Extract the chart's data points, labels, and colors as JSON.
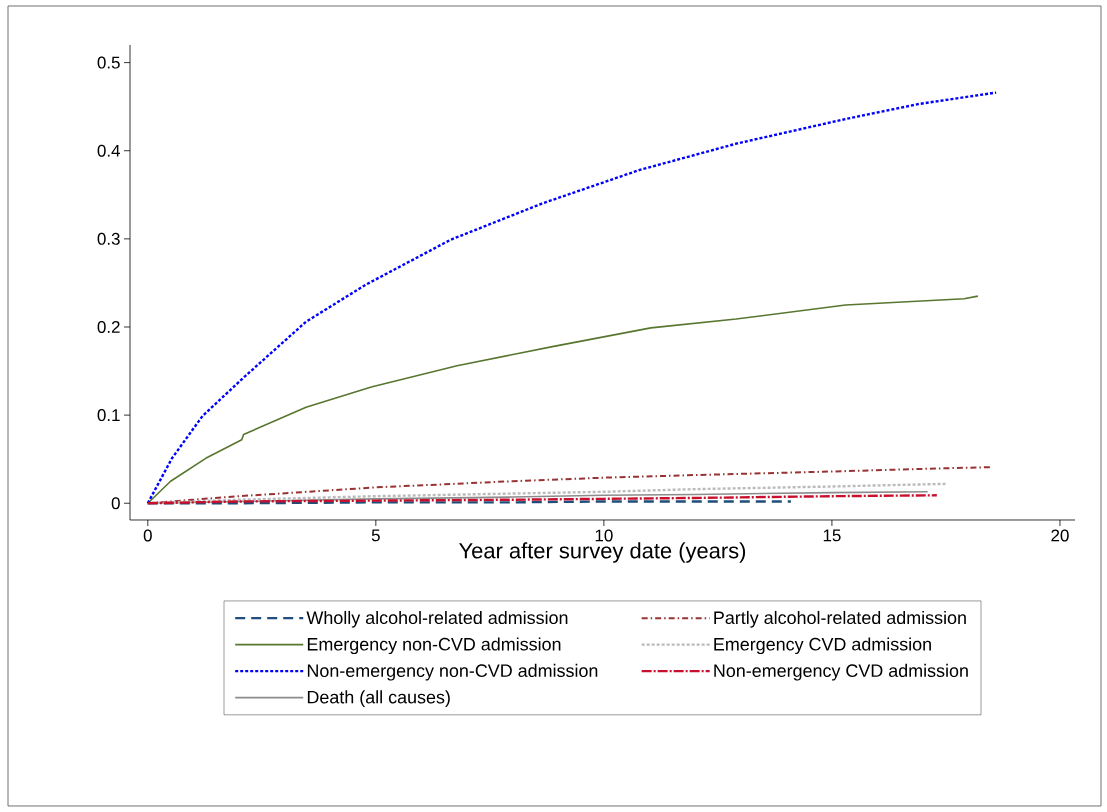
{
  "chart_data": {
    "type": "line",
    "xlabel": "Year after survey date (years)",
    "xlim": [
      -0.39,
      20.33
    ],
    "ylim": [
      -0.019,
      0.52
    ],
    "xticks": [
      0,
      5,
      10,
      15,
      20
    ],
    "yticks": [
      0,
      0.1,
      0.2,
      0.3,
      0.4,
      0.5
    ],
    "grid": false,
    "legend": "bottom",
    "marker": "none",
    "series": [
      {
        "name": "Wholly alcohol-related admission",
        "color": "#1f4e79",
        "line_style": "dashed",
        "x": [
          0,
          2,
          5,
          8,
          10,
          12,
          14.1
        ],
        "values": [
          0,
          0,
          0.001,
          0.001,
          0.002,
          0.002,
          0.002
        ]
      },
      {
        "name": "Partly alcohol-related admission",
        "color": "#993333",
        "line_style": "dashdot",
        "x": [
          0,
          2,
          5,
          8,
          10,
          12,
          15,
          17,
          18.5
        ],
        "values": [
          0,
          0.008,
          0.018,
          0.025,
          0.029,
          0.032,
          0.036,
          0.039,
          0.041
        ]
      },
      {
        "name": "Emergency non-CVD admission",
        "color": "#587630",
        "line_style": "solid",
        "x": [
          0,
          0.5,
          1.27,
          2.06,
          2.1,
          3.47,
          4.9,
          6.78,
          8.9,
          11.03,
          12.9,
          15.3,
          17.9,
          18.2
        ],
        "values": [
          0,
          0.025,
          0.051,
          0.072,
          0.078,
          0.109,
          0.132,
          0.156,
          0.178,
          0.199,
          0.209,
          0.225,
          0.232,
          0.235
        ]
      },
      {
        "name": "Emergency CVD admission",
        "color": "#bbbbbb",
        "line_style": "dotted",
        "x": [
          0,
          2,
          5,
          8,
          10,
          12,
          15,
          17.5
        ],
        "values": [
          0,
          0.004,
          0.008,
          0.011,
          0.013,
          0.016,
          0.019,
          0.022
        ]
      },
      {
        "name": "Non-emergency non-CVD admission",
        "color": "#0000ff",
        "line_style": "dotted",
        "x": [
          0,
          0.53,
          1.2,
          2.13,
          3.47,
          4.78,
          6.64,
          8.64,
          10.77,
          12.9,
          15.3,
          16.9,
          18.6
        ],
        "values": [
          0,
          0.051,
          0.099,
          0.144,
          0.206,
          0.248,
          0.299,
          0.34,
          0.378,
          0.408,
          0.436,
          0.453,
          0.466
        ]
      },
      {
        "name": "Non-emergency CVD admission",
        "color": "#c8102e",
        "line_style": "longdashdot",
        "x": [
          0,
          2,
          5,
          8,
          10,
          12,
          15,
          17.3
        ],
        "values": [
          0,
          0.002,
          0.003,
          0.004,
          0.005,
          0.006,
          0.008,
          0.009
        ]
      },
      {
        "name": "Death (all causes)",
        "color": "#8c8c8c",
        "line_style": "solid",
        "x": [
          0,
          2,
          5,
          8,
          10,
          12,
          15,
          17.1
        ],
        "values": [
          0,
          0.002,
          0.005,
          0.007,
          0.009,
          0.01,
          0.012,
          0.013
        ]
      }
    ]
  }
}
